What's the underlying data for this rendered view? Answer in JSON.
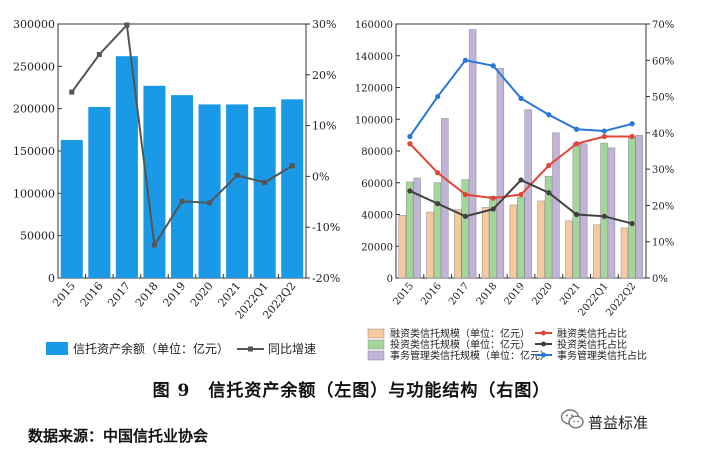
{
  "caption": "图 9　信托资产余额（左图）与功能结构（右图）",
  "source": "数据来源：中国信托业协会",
  "watermark": "普益标准",
  "chart_data": [
    {
      "type": "bar",
      "categories": [
        "2015",
        "2016",
        "2017",
        "2018",
        "2019",
        "2020",
        "2021",
        "2022Q1",
        "2022Q2"
      ],
      "series": [
        {
          "name": "信托资产余额（单位：亿元）",
          "kind": "bar",
          "axis": "left",
          "color": "#1a9ae6",
          "values": [
            163000,
            202000,
            262000,
            227000,
            216000,
            205000,
            205000,
            202000,
            211000
          ]
        },
        {
          "name": "同比增速",
          "kind": "line",
          "axis": "right",
          "color": "#555555",
          "values": [
            16.6,
            24.0,
            29.8,
            -13.5,
            -4.9,
            -5.2,
            0.2,
            -1.2,
            2.1
          ]
        }
      ],
      "left_axis": {
        "min": 0,
        "max": 300000,
        "ticks": [
          "0",
          "50000",
          "100000",
          "150000",
          "200000",
          "250000",
          "300000"
        ]
      },
      "right_axis": {
        "min": -20,
        "max": 30,
        "ticks": [
          "-20%",
          "-10%",
          "0%",
          "10%",
          "20%",
          "30%"
        ]
      },
      "legend": {
        "bar": "信托资产余额（单位：亿元）",
        "line": "同比增速"
      }
    },
    {
      "type": "bar",
      "categories": [
        "2015",
        "2016",
        "2017",
        "2018",
        "2019",
        "2020",
        "2021",
        "2022Q1",
        "2022Q2"
      ],
      "series": [
        {
          "name": "融资类信托规模（单位：亿元）",
          "kind": "bar",
          "axis": "left",
          "color": "#f7c9a0",
          "values": [
            39500,
            41500,
            43000,
            44500,
            46000,
            48500,
            36000,
            33500,
            31500
          ]
        },
        {
          "name": "投资类信托规模（单位：亿元）",
          "kind": "bar",
          "axis": "left",
          "color": "#a4d69b",
          "values": [
            60500,
            60000,
            62000,
            51500,
            51000,
            64000,
            85000,
            85000,
            89000
          ]
        },
        {
          "name": "事务管理类信托规模（单位：亿元）",
          "kind": "bar",
          "axis": "left",
          "color": "#c2b4d8",
          "values": [
            63000,
            100500,
            156500,
            132000,
            106000,
            91500,
            84500,
            82000,
            90000
          ]
        },
        {
          "name": "融资类信托占比",
          "kind": "line",
          "axis": "right",
          "color": "#e2453a",
          "values": [
            37,
            29,
            23,
            22,
            23,
            31,
            37,
            39,
            39
          ]
        },
        {
          "name": "投资类信托占比",
          "kind": "line",
          "axis": "right",
          "color": "#404040",
          "values": [
            24,
            20.5,
            17,
            19,
            27,
            23.5,
            17.5,
            17,
            15
          ]
        },
        {
          "name": "事务管理类信托占比",
          "kind": "line",
          "axis": "right",
          "color": "#2a78d6",
          "values": [
            39,
            50,
            60,
            58.5,
            49.5,
            45,
            41,
            40.5,
            42.5
          ]
        }
      ],
      "left_axis": {
        "min": 0,
        "max": 160000,
        "ticks": [
          "0",
          "20000",
          "40000",
          "60000",
          "80000",
          "100000",
          "120000",
          "140000",
          "160000"
        ]
      },
      "right_axis": {
        "min": 0,
        "max": 70,
        "ticks": [
          "0%",
          "10%",
          "20%",
          "30%",
          "40%",
          "50%",
          "60%",
          "70%"
        ]
      },
      "legend": {
        "items": [
          "融资类信托规模（单位：亿元）",
          "融资类信托占比",
          "投资类信托规模（单位：亿元）",
          "投资类信托占比",
          "事务管理类信托规模（单位：亿元）",
          "事务管理类信托占比"
        ]
      }
    }
  ]
}
